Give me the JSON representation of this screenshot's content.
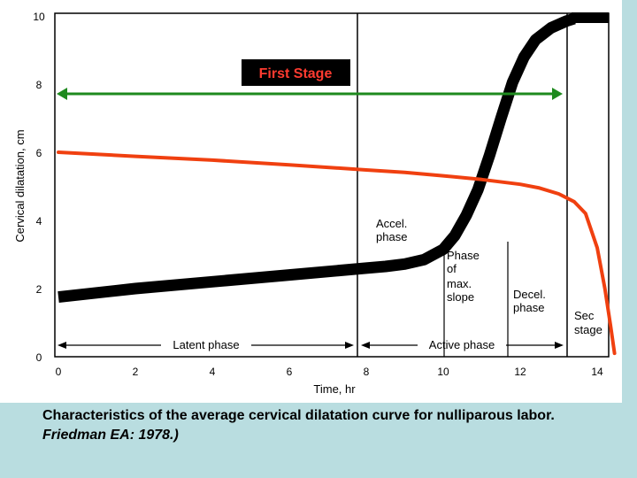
{
  "chart_data": {
    "type": "line",
    "xlabel": "Time, hr",
    "ylabel": "Cervical dilatation, cm",
    "xlim": [
      0,
      14.5
    ],
    "ylim": [
      0,
      10
    ],
    "grid": false,
    "x_ticks": [
      "0",
      "2",
      "4",
      "6",
      "8",
      "10",
      "12",
      "14"
    ],
    "y_ticks": [
      "0",
      "2",
      "4",
      "6",
      "8",
      "10"
    ],
    "series": [
      {
        "color": "#000000",
        "x": [
          0,
          2,
          4,
          6,
          8,
          8.5,
          9,
          9.5,
          10,
          10.3,
          10.6,
          10.9,
          11.2,
          11.5,
          11.8,
          12.1,
          12.4,
          12.8,
          13.2,
          13.4
        ],
        "y": [
          1.75,
          2.0,
          2.2,
          2.4,
          2.6,
          2.65,
          2.72,
          2.85,
          3.15,
          3.55,
          4.15,
          4.9,
          5.9,
          7.0,
          8.05,
          8.8,
          9.3,
          9.65,
          9.85,
          9.92
        ]
      },
      {
        "color": "#f04010",
        "x": [
          0,
          2,
          4,
          6,
          8,
          9,
          10,
          11,
          12,
          12.5,
          13,
          13.4,
          13.7,
          14,
          14.2,
          14.35,
          14.45
        ],
        "y": [
          6.0,
          5.88,
          5.77,
          5.63,
          5.48,
          5.41,
          5.31,
          5.2,
          5.06,
          4.95,
          4.78,
          4.55,
          4.2,
          3.2,
          2.0,
          0.9,
          0.1
        ]
      }
    ],
    "annotations": {
      "first_stage": "First Stage",
      "second_stage_line1": "Sec",
      "second_stage_line2": "stage",
      "latent_phase": "Latent phase",
      "active_phase": "Active phase",
      "accel": [
        "Accel.",
        "phase"
      ],
      "max_slope": [
        "Phase",
        "of",
        "max.",
        "slope"
      ],
      "decel": [
        "Decel.",
        "phase"
      ]
    }
  },
  "caption": {
    "text": "Characteristics of the average cervical dilatation curve for nulliparous labor. ",
    "source": "Friedman EA: 1978.)"
  }
}
